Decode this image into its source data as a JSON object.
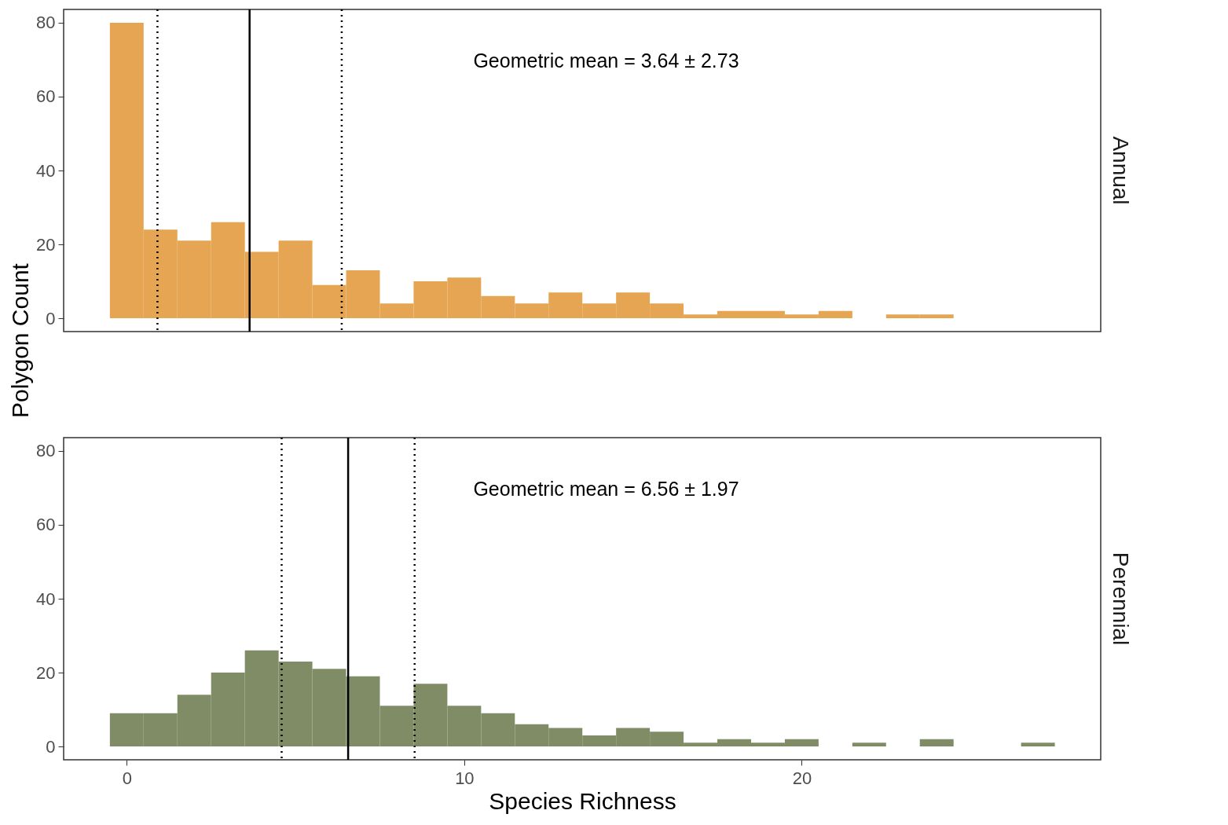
{
  "chart_data": [
    {
      "type": "histogram",
      "title": "Annual",
      "ylabel": "Polygon Count",
      "color": "#e5a552",
      "bins": [
        -0.5,
        0.5,
        1.5,
        2.5,
        3.5,
        4.5,
        5.5,
        6.5,
        7.5,
        8.5,
        9.5,
        10.5,
        11.5,
        12.5,
        13.5,
        14.5,
        15.5,
        16.5,
        17.5,
        18.5,
        19.5,
        20.5,
        21.5,
        22.5,
        23.5,
        24.5
      ],
      "values": [
        80,
        24,
        21,
        26,
        18,
        21,
        9,
        13,
        4,
        10,
        11,
        6,
        4,
        7,
        4,
        7,
        4,
        1,
        2,
        2,
        1,
        2,
        0,
        1,
        1
      ],
      "xlim": [
        -1.87,
        28.86
      ],
      "ylim": [
        -3.6,
        83.6
      ],
      "xticks": [
        0,
        10,
        20
      ],
      "yticks": [
        0,
        20,
        40,
        60,
        80
      ],
      "tick_labels": "y",
      "grid": false,
      "ref_lines": [
        {
          "axis": "x",
          "value": 3.64,
          "color": "#000000",
          "line_style": "solid"
        },
        {
          "axis": "x",
          "value": 0.91,
          "color": "#000000",
          "line_style": "dotted"
        },
        {
          "axis": "x",
          "value": 6.37,
          "color": "#000000",
          "line_style": "dotted"
        }
      ],
      "annotations": [
        "Geometric mean = 3.64 ± 2.73"
      ]
    },
    {
      "type": "histogram",
      "title": "Perennial",
      "xlabel": "Species Richness",
      "color": "#7f8c66",
      "bins": [
        -0.5,
        0.5,
        1.5,
        2.5,
        3.5,
        4.5,
        5.5,
        6.5,
        7.5,
        8.5,
        9.5,
        10.5,
        11.5,
        12.5,
        13.5,
        14.5,
        15.5,
        16.5,
        17.5,
        18.5,
        19.5,
        20.5,
        21.5,
        22.5,
        23.5,
        24.5,
        25.5,
        26.5,
        27.5
      ],
      "values": [
        9,
        9,
        14,
        20,
        26,
        23,
        21,
        19,
        11,
        17,
        11,
        9,
        6,
        5,
        3,
        5,
        4,
        1,
        2,
        1,
        2,
        0,
        1,
        0,
        2,
        0,
        0,
        1
      ],
      "xlim": [
        -1.87,
        28.86
      ],
      "ylim": [
        -3.6,
        83.6
      ],
      "xticks": [
        0,
        10,
        20
      ],
      "yticks": [
        0,
        20,
        40,
        60,
        80
      ],
      "grid": false,
      "ref_lines": [
        {
          "axis": "x",
          "value": 6.56,
          "color": "#000000",
          "line_style": "solid"
        },
        {
          "axis": "x",
          "value": 4.59,
          "color": "#000000",
          "line_style": "dotted"
        },
        {
          "axis": "x",
          "value": 8.53,
          "color": "#000000",
          "line_style": "dotted"
        }
      ],
      "annotations": [
        "Geometric mean = 6.56 ± 1.97"
      ]
    }
  ]
}
